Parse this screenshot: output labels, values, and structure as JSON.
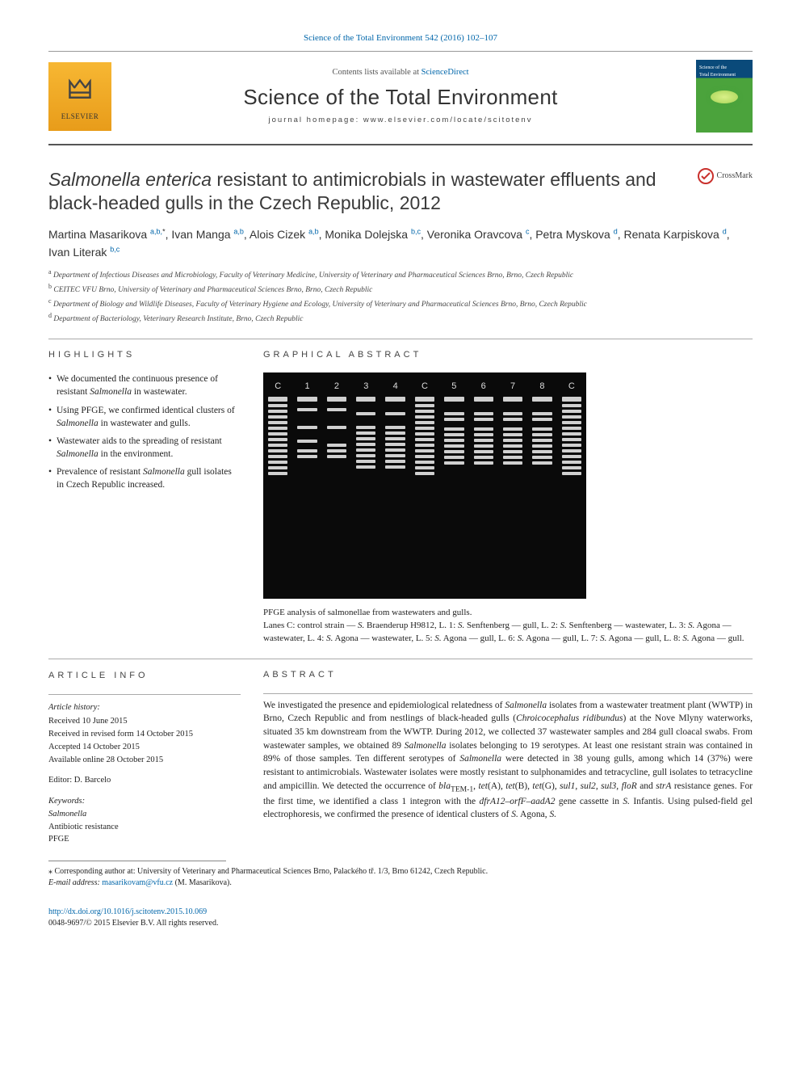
{
  "header": {
    "citation": "Science of the Total Environment 542 (2016) 102–107",
    "contents_line_prefix": "Contents lists available at ",
    "contents_line_link": "ScienceDirect",
    "journal_name": "Science of the Total Environment",
    "homepage_label": "journal homepage: www.elsevier.com/locate/scitotenv",
    "publisher_logo_text": "ELSEVIER"
  },
  "crossmark_label": "CrossMark",
  "title_html": "<em>Salmonella enterica</em> resistant to antimicrobials in wastewater effluents and black-headed gulls in the Czech Republic, 2012",
  "authors": [
    {
      "name": "Martina Masarikova",
      "sup": "a,b,",
      "star": true
    },
    {
      "name": "Ivan Manga",
      "sup": "a,b"
    },
    {
      "name": "Alois Cizek",
      "sup": "a,b"
    },
    {
      "name": "Monika Dolejska",
      "sup": "b,c"
    },
    {
      "name": "Veronika Oravcova",
      "sup": "c"
    },
    {
      "name": "Petra Myskova",
      "sup": "d"
    },
    {
      "name": "Renata Karpiskova",
      "sup": "d"
    },
    {
      "name": "Ivan Literak",
      "sup": "b,c"
    }
  ],
  "affiliations": [
    {
      "key": "a",
      "text": "Department of Infectious Diseases and Microbiology, Faculty of Veterinary Medicine, University of Veterinary and Pharmaceutical Sciences Brno, Brno, Czech Republic"
    },
    {
      "key": "b",
      "text": "CEITEC VFU Brno, University of Veterinary and Pharmaceutical Sciences Brno, Brno, Czech Republic"
    },
    {
      "key": "c",
      "text": "Department of Biology and Wildlife Diseases, Faculty of Veterinary Hygiene and Ecology, University of Veterinary and Pharmaceutical Sciences Brno, Brno, Czech Republic"
    },
    {
      "key": "d",
      "text": "Department of Bacteriology, Veterinary Research Institute, Brno, Czech Republic"
    }
  ],
  "highlights_heading": "HIGHLIGHTS",
  "highlights": [
    "We documented the continuous presence of resistant <em>Salmonella</em> in wastewater.",
    "Using PFGE, we confirmed identical clusters of <em>Salmonella</em> in wastewater and gulls.",
    "Wastewater aids to the spreading of resistant <em>Salmonella</em> in the environment.",
    "Prevalence of resistant <em>Salmonella</em> gull isolates in Czech Republic increased."
  ],
  "graphical_abstract_heading": "GRAPHICAL ABSTRACT",
  "gel": {
    "lane_labels": [
      "C",
      "1",
      "2",
      "3",
      "4",
      "C",
      "5",
      "6",
      "7",
      "8",
      "C"
    ],
    "lane_patterns": [
      [
        3,
        2,
        2,
        2,
        2,
        2,
        2,
        2,
        2,
        2,
        2,
        2,
        2,
        2
      ],
      [
        3,
        0,
        2,
        0,
        0,
        0,
        2,
        0,
        0,
        2,
        0,
        2,
        2,
        0
      ],
      [
        3,
        0,
        2,
        0,
        0,
        0,
        2,
        0,
        0,
        0,
        2,
        2,
        2,
        0
      ],
      [
        3,
        0,
        0,
        2,
        0,
        0,
        2,
        2,
        2,
        2,
        2,
        2,
        2,
        2
      ],
      [
        3,
        0,
        0,
        2,
        0,
        0,
        2,
        2,
        2,
        2,
        2,
        2,
        2,
        2
      ],
      [
        3,
        2,
        2,
        2,
        2,
        2,
        2,
        2,
        2,
        2,
        2,
        2,
        2,
        2
      ],
      [
        3,
        0,
        0,
        2,
        2,
        0,
        2,
        2,
        2,
        2,
        2,
        2,
        2,
        0
      ],
      [
        3,
        0,
        0,
        2,
        2,
        0,
        2,
        2,
        2,
        2,
        2,
        2,
        2,
        0
      ],
      [
        3,
        0,
        0,
        2,
        2,
        0,
        2,
        2,
        2,
        2,
        2,
        2,
        2,
        0
      ],
      [
        3,
        0,
        0,
        2,
        2,
        0,
        2,
        2,
        2,
        2,
        2,
        2,
        2,
        0
      ],
      [
        3,
        2,
        2,
        2,
        2,
        2,
        2,
        2,
        2,
        2,
        2,
        2,
        2,
        2
      ]
    ],
    "band_color": "#d0d0d0",
    "bg": "#0a0a0a",
    "caption_title": "PFGE analysis of salmonellae from wastewaters and gulls.",
    "caption_body": "Lanes C: control strain — <em>S.</em> Braenderup H9812, L. 1: <em>S.</em> Senftenberg — gull, L. 2: <em>S.</em> Senftenberg — wastewater, L. 3: <em>S.</em> Agona — wastewater, L. 4: <em>S.</em> Agona — wastewater, L. 5: <em>S.</em> Agona — gull, L. 6: <em>S.</em> Agona — gull, L. 7: <em>S.</em> Agona — gull, L. 8: <em>S.</em> Agona — gull."
  },
  "article_info_heading": "ARTICLE INFO",
  "article_info": {
    "history_head": "Article history:",
    "history": [
      "Received 10 June 2015",
      "Received in revised form 14 October 2015",
      "Accepted 14 October 2015",
      "Available online 28 October 2015"
    ],
    "editor": "Editor: D. Barcelo",
    "kw_head": "Keywords:",
    "keywords": [
      "Salmonella",
      "Antibiotic resistance",
      "PFGE"
    ]
  },
  "abstract_heading": "ABSTRACT",
  "abstract_html": "We investigated the presence and epidemiological relatedness of <em>Salmonella</em> isolates from a wastewater treatment plant (WWTP) in Brno, Czech Republic and from nestlings of black-headed gulls (<em>Chroicocephalus ridibundus</em>) at the Nove Mlyny waterworks, situated 35 km downstream from the WWTP. During 2012, we collected 37 wastewater samples and 284 gull cloacal swabs. From wastewater samples, we obtained 89 <em>Salmonella</em> isolates belonging to 19 serotypes. At least one resistant strain was contained in 89% of those samples. Ten different serotypes of <em>Salmonella</em> were detected in 38 young gulls, among which 14 (37%) were resistant to antimicrobials. Wastewater isolates were mostly resistant to sulphonamides and tetracycline, gull isolates to tetracycline and ampicillin. We detected the occurrence of <em>bla</em><sub>TEM-1</sub>, <em>tet</em>(A), <em>tet</em>(B), <em>tet</em>(G), <em>sul1</em>, <em>sul2</em>, <em>sul3</em>, <em>floR</em> and <em>strA</em> resistance genes. For the first time, we identified a class 1 integron with the <em>dfrA12–orfF–aadA2</em> gene cassette in <em>S.</em> Infantis. Using pulsed-field gel electrophoresis, we confirmed the presence of identical clusters of <em>S.</em> Agona, <em>S.</em>",
  "corresponding": {
    "label": "⁎  Corresponding author at: University of Veterinary and Pharmaceutical Sciences Brno, Palackého tř. 1/3, Brno 61242, Czech Republic.",
    "email_label": "E-mail address:",
    "email": "masarikovam@vfu.cz",
    "email_suffix": "(M. Masarikova)."
  },
  "footer": {
    "doi": "http://dx.doi.org/10.1016/j.scitotenv.2015.10.069",
    "issn_line": "0048-9697/© 2015 Elsevier B.V. All rights reserved."
  },
  "colors": {
    "link": "#0066aa",
    "text": "#222222",
    "rule": "#999999"
  }
}
